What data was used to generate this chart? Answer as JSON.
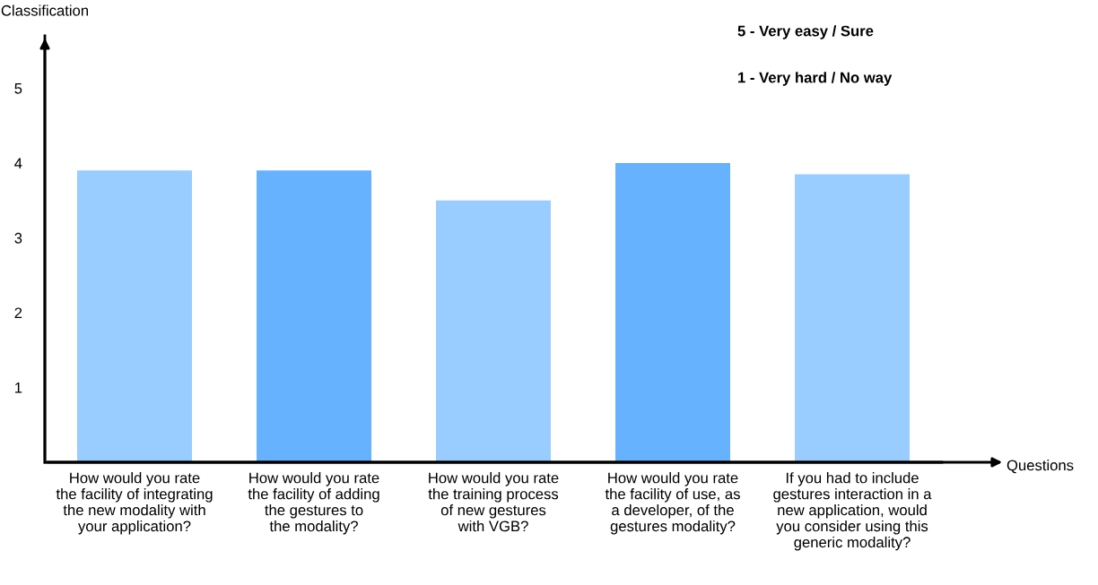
{
  "chart_data": {
    "type": "bar",
    "xlabel": "Questions",
    "ylabel": "Classification",
    "categories": [
      "How would you rate\nthe facility of integrating\nthe new modality with\nyour application?",
      "How would you rate\nthe facility of adding\nthe gestures to\nthe modality?",
      "How would you rate\nthe training process\nof new gestures\nwith VGB?",
      "How would you rate\nthe facility of use, as\na developer, of the\ngestures modality?",
      "If you had to include\ngestures interaction in a\nnew application, would\nyou consider using this\ngeneric modality?"
    ],
    "values": [
      3.9,
      3.9,
      3.5,
      4.0,
      3.85
    ],
    "colors": [
      "#99ccff",
      "#66b2ff",
      "#99ccff",
      "#66b2ff",
      "#99ccff"
    ],
    "ylim": [
      0,
      5.7
    ],
    "yticks": [
      1,
      2,
      3,
      4,
      5
    ],
    "annotations": [
      "5 - Very easy / Sure",
      "1 - Very hard / No way"
    ],
    "grid": false,
    "legend": false
  }
}
